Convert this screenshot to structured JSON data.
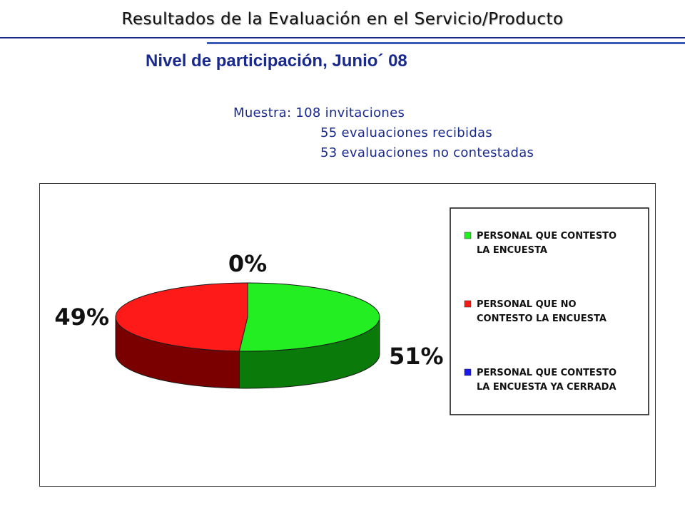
{
  "header": {
    "title": "Resultados de la Evaluación en el Servicio/Producto"
  },
  "subtitle": "Nivel de participación, Junio´ 08",
  "sample": {
    "line1": "Muestra: 108 invitaciones",
    "line2": "55 evaluaciones recibidas",
    "line3": "53 evaluaciones no contestadas"
  },
  "chart_data": {
    "type": "pie",
    "title": "",
    "style": "3d",
    "legend_position": "right",
    "series": [
      {
        "name": "PERSONAL QUE CONTESTO LA ENCUESTA",
        "legend_lines": [
          "PERSONAL QUE CONTESTO",
          "LA ENCUESTA"
        ],
        "value": 51,
        "label": "51%",
        "color": "#22ee22",
        "side_color": "#0a7a0a"
      },
      {
        "name": "PERSONAL QUE NO CONTESTO LA ENCUESTA",
        "legend_lines": [
          "PERSONAL QUE NO",
          "CONTESTO LA ENCUESTA"
        ],
        "value": 49,
        "label": "49%",
        "color": "#ff1a1a",
        "side_color": "#7a0000"
      },
      {
        "name": "PERSONAL QUE CONTESTO LA ENCUESTA YA CERRADA",
        "legend_lines": [
          "PERSONAL QUE CONTESTO",
          "LA ENCUESTA YA CERRADA"
        ],
        "value": 0,
        "label": "0%",
        "color": "#1a1aee",
        "side_color": "#00007a"
      }
    ]
  }
}
